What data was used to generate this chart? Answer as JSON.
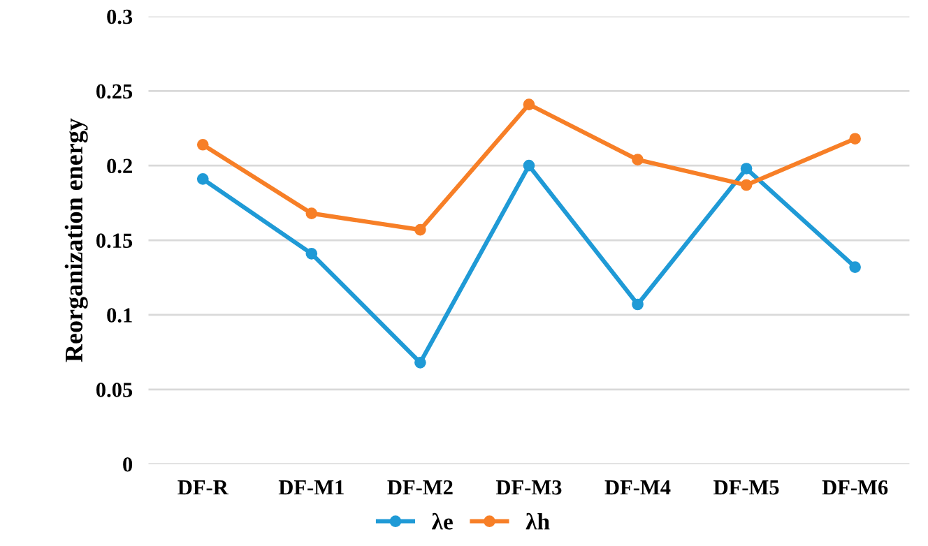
{
  "chart_data": {
    "type": "line",
    "ylabel": "Reorganization energy",
    "categories": [
      "DF-R",
      "DF-M1",
      "DF-M2",
      "DF-M3",
      "DF-M4",
      "DF-M5",
      "DF-M6"
    ],
    "series": [
      {
        "name": "λe",
        "color": "#1f9ad6",
        "values": [
          0.191,
          0.141,
          0.068,
          0.2,
          0.107,
          0.198,
          0.132
        ]
      },
      {
        "name": "λh",
        "color": "#f77f27",
        "values": [
          0.214,
          0.168,
          0.157,
          0.241,
          0.204,
          0.187,
          0.218
        ]
      }
    ],
    "ylim": [
      0,
      0.3
    ],
    "yticks": [
      {
        "value": 0,
        "label": "0"
      },
      0.05,
      0.1,
      0.15,
      0.2,
      0.25,
      0.3
    ],
    "grid": "y",
    "legend": "bottom",
    "marker": "circle",
    "line_style": "solid"
  }
}
